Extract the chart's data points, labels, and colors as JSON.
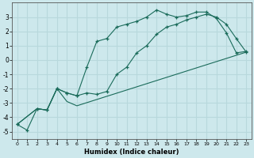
{
  "xlabel": "Humidex (Indice chaleur)",
  "background_color": "#cde8ec",
  "grid_color": "#b8d8dc",
  "line_color": "#1a6b5a",
  "xlim": [
    -0.5,
    23.5
  ],
  "ylim": [
    -5.5,
    4.0
  ],
  "yticks": [
    -5,
    -4,
    -3,
    -2,
    -1,
    0,
    1,
    2,
    3
  ],
  "xticks": [
    0,
    1,
    2,
    3,
    4,
    5,
    6,
    7,
    8,
    9,
    10,
    11,
    12,
    13,
    14,
    15,
    16,
    17,
    18,
    19,
    20,
    21,
    22,
    23
  ],
  "curve1_x": [
    0,
    1,
    2,
    3,
    4,
    5,
    6,
    7,
    8,
    9,
    10,
    11,
    12,
    13,
    14,
    15,
    16,
    17,
    18,
    19,
    20,
    21,
    22,
    23
  ],
  "curve1_y": [
    -4.5,
    -4.9,
    -3.4,
    -3.5,
    -2.0,
    -2.3,
    -2.5,
    -0.5,
    1.3,
    1.5,
    2.3,
    2.5,
    2.7,
    3.0,
    3.5,
    3.2,
    3.0,
    3.1,
    3.35,
    3.35,
    2.9,
    1.9,
    0.5,
    0.6
  ],
  "curve2_x": [
    0,
    2,
    3,
    4,
    5,
    6,
    7,
    8,
    9,
    10,
    11,
    12,
    13,
    14,
    15,
    16,
    17,
    18,
    19,
    20,
    21,
    22,
    23
  ],
  "curve2_y": [
    -4.5,
    -3.4,
    -3.5,
    -2.0,
    -2.3,
    -2.5,
    -2.3,
    -2.4,
    -2.2,
    -1.0,
    -0.5,
    0.5,
    1.0,
    1.8,
    2.3,
    2.5,
    2.8,
    3.0,
    3.2,
    3.0,
    2.5,
    1.5,
    0.55
  ],
  "curve3_x": [
    0,
    2,
    3,
    4,
    5,
    6,
    23
  ],
  "curve3_y": [
    -4.5,
    -3.4,
    -3.5,
    -2.0,
    -2.9,
    -3.2,
    0.55
  ]
}
